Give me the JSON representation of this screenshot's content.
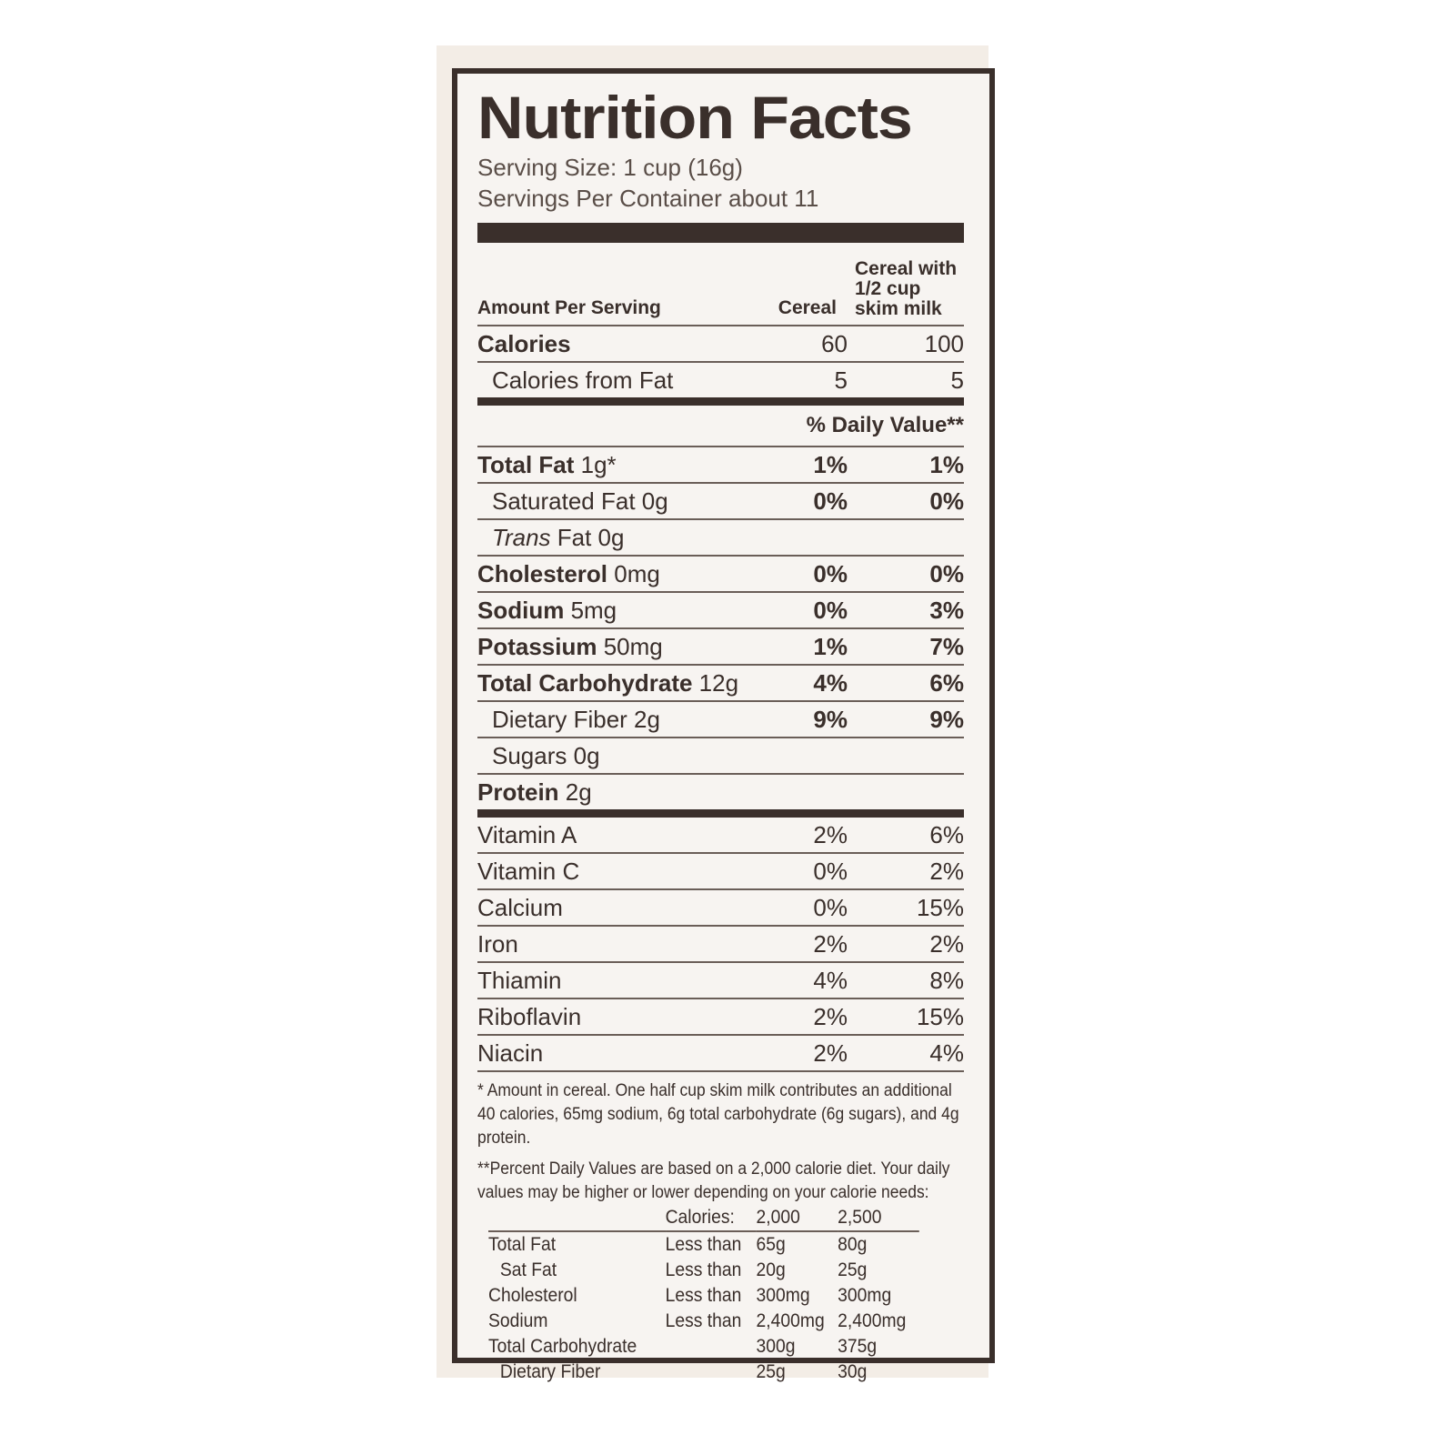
{
  "title": "Nutrition Facts",
  "serving_size": "Serving Size: 1 cup (16g)",
  "servings_per_container": "Servings Per Container about 11",
  "header": {
    "amount": "Amount Per Serving",
    "col1": "Cereal",
    "col2_l1": "Cereal with",
    "col2_l2": "1/2 cup",
    "col2_l3": "skim milk"
  },
  "calories": {
    "label": "Calories",
    "cereal": "60",
    "milk": "100"
  },
  "calories_fat": {
    "label": "Calories from Fat",
    "cereal": "5",
    "milk": "5"
  },
  "daily_value_header": "% Daily Value**",
  "nutrients": [
    {
      "bold": "Total Fat",
      "rest": " 1g*",
      "indent": false,
      "italic": "",
      "cereal": "1%",
      "milk": "1%"
    },
    {
      "bold": "",
      "rest": "Saturated Fat 0g",
      "indent": true,
      "italic": "",
      "cereal": "0%",
      "milk": "0%"
    },
    {
      "bold": "",
      "rest": " Fat 0g",
      "indent": true,
      "italic": "Trans",
      "cereal": "",
      "milk": ""
    },
    {
      "bold": "Cholesterol",
      "rest": " 0mg",
      "indent": false,
      "italic": "",
      "cereal": "0%",
      "milk": "0%"
    },
    {
      "bold": "Sodium",
      "rest": " 5mg",
      "indent": false,
      "italic": "",
      "cereal": "0%",
      "milk": "3%"
    },
    {
      "bold": "Potassium",
      "rest": " 50mg",
      "indent": false,
      "italic": "",
      "cereal": "1%",
      "milk": "7%"
    },
    {
      "bold": "Total Carbohydrate",
      "rest": " 12g",
      "indent": false,
      "italic": "",
      "cereal": "4%",
      "milk": "6%"
    },
    {
      "bold": "",
      "rest": "Dietary Fiber 2g",
      "indent": true,
      "italic": "",
      "cereal": "9%",
      "milk": "9%"
    },
    {
      "bold": "",
      "rest": "Sugars 0g",
      "indent": true,
      "italic": "",
      "cereal": "",
      "milk": ""
    },
    {
      "bold": "Protein",
      "rest": " 2g",
      "indent": false,
      "italic": "",
      "cereal": "",
      "milk": ""
    }
  ],
  "vitamins": [
    {
      "label": "Vitamin A",
      "cereal": "2%",
      "milk": "6%"
    },
    {
      "label": "Vitamin C",
      "cereal": "0%",
      "milk": "2%"
    },
    {
      "label": "Calcium",
      "cereal": "0%",
      "milk": "15%"
    },
    {
      "label": "Iron",
      "cereal": "2%",
      "milk": "2%"
    },
    {
      "label": "Thiamin",
      "cereal": "4%",
      "milk": "8%"
    },
    {
      "label": "Riboflavin",
      "cereal": "2%",
      "milk": "15%"
    },
    {
      "label": "Niacin",
      "cereal": "2%",
      "milk": "4%"
    }
  ],
  "footnote1": "* Amount in cereal. One half cup skim milk contributes an additional 40 calories, 65mg sodium, 6g total carbohydrate (6g sugars), and 4g protein.",
  "footnote2": "**Percent Daily Values are based on a 2,000 calorie diet. Your daily values may be higher or lower depending on your calorie needs:",
  "dv_table": {
    "header": [
      "",
      "Calories:",
      "2,000",
      "2,500"
    ],
    "rows": [
      [
        "Total Fat",
        "Less than",
        "65g",
        "80g"
      ],
      [
        "Sat Fat",
        "Less than",
        "20g",
        "25g"
      ],
      [
        "Cholesterol",
        "Less than",
        "300mg",
        "300mg"
      ],
      [
        "Sodium",
        "Less than",
        "2,400mg",
        "2,400mg"
      ],
      [
        "Total Carbohydrate",
        "",
        "300g",
        "375g"
      ],
      [
        "Dietary Fiber",
        "",
        "25g",
        "30g"
      ]
    ]
  }
}
